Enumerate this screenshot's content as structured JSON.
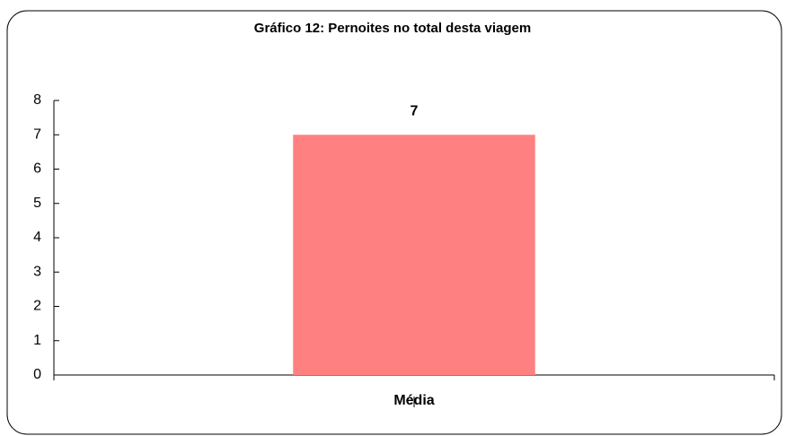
{
  "chart_data": {
    "type": "bar",
    "title": "Gráfico 12: Pernoites no total desta viagem",
    "categories": [
      "Média"
    ],
    "values": [
      7
    ],
    "color": "#ff8080",
    "ylim": [
      0,
      8
    ],
    "yticks": [
      0,
      1,
      2,
      3,
      4,
      5,
      6,
      7,
      8
    ]
  }
}
